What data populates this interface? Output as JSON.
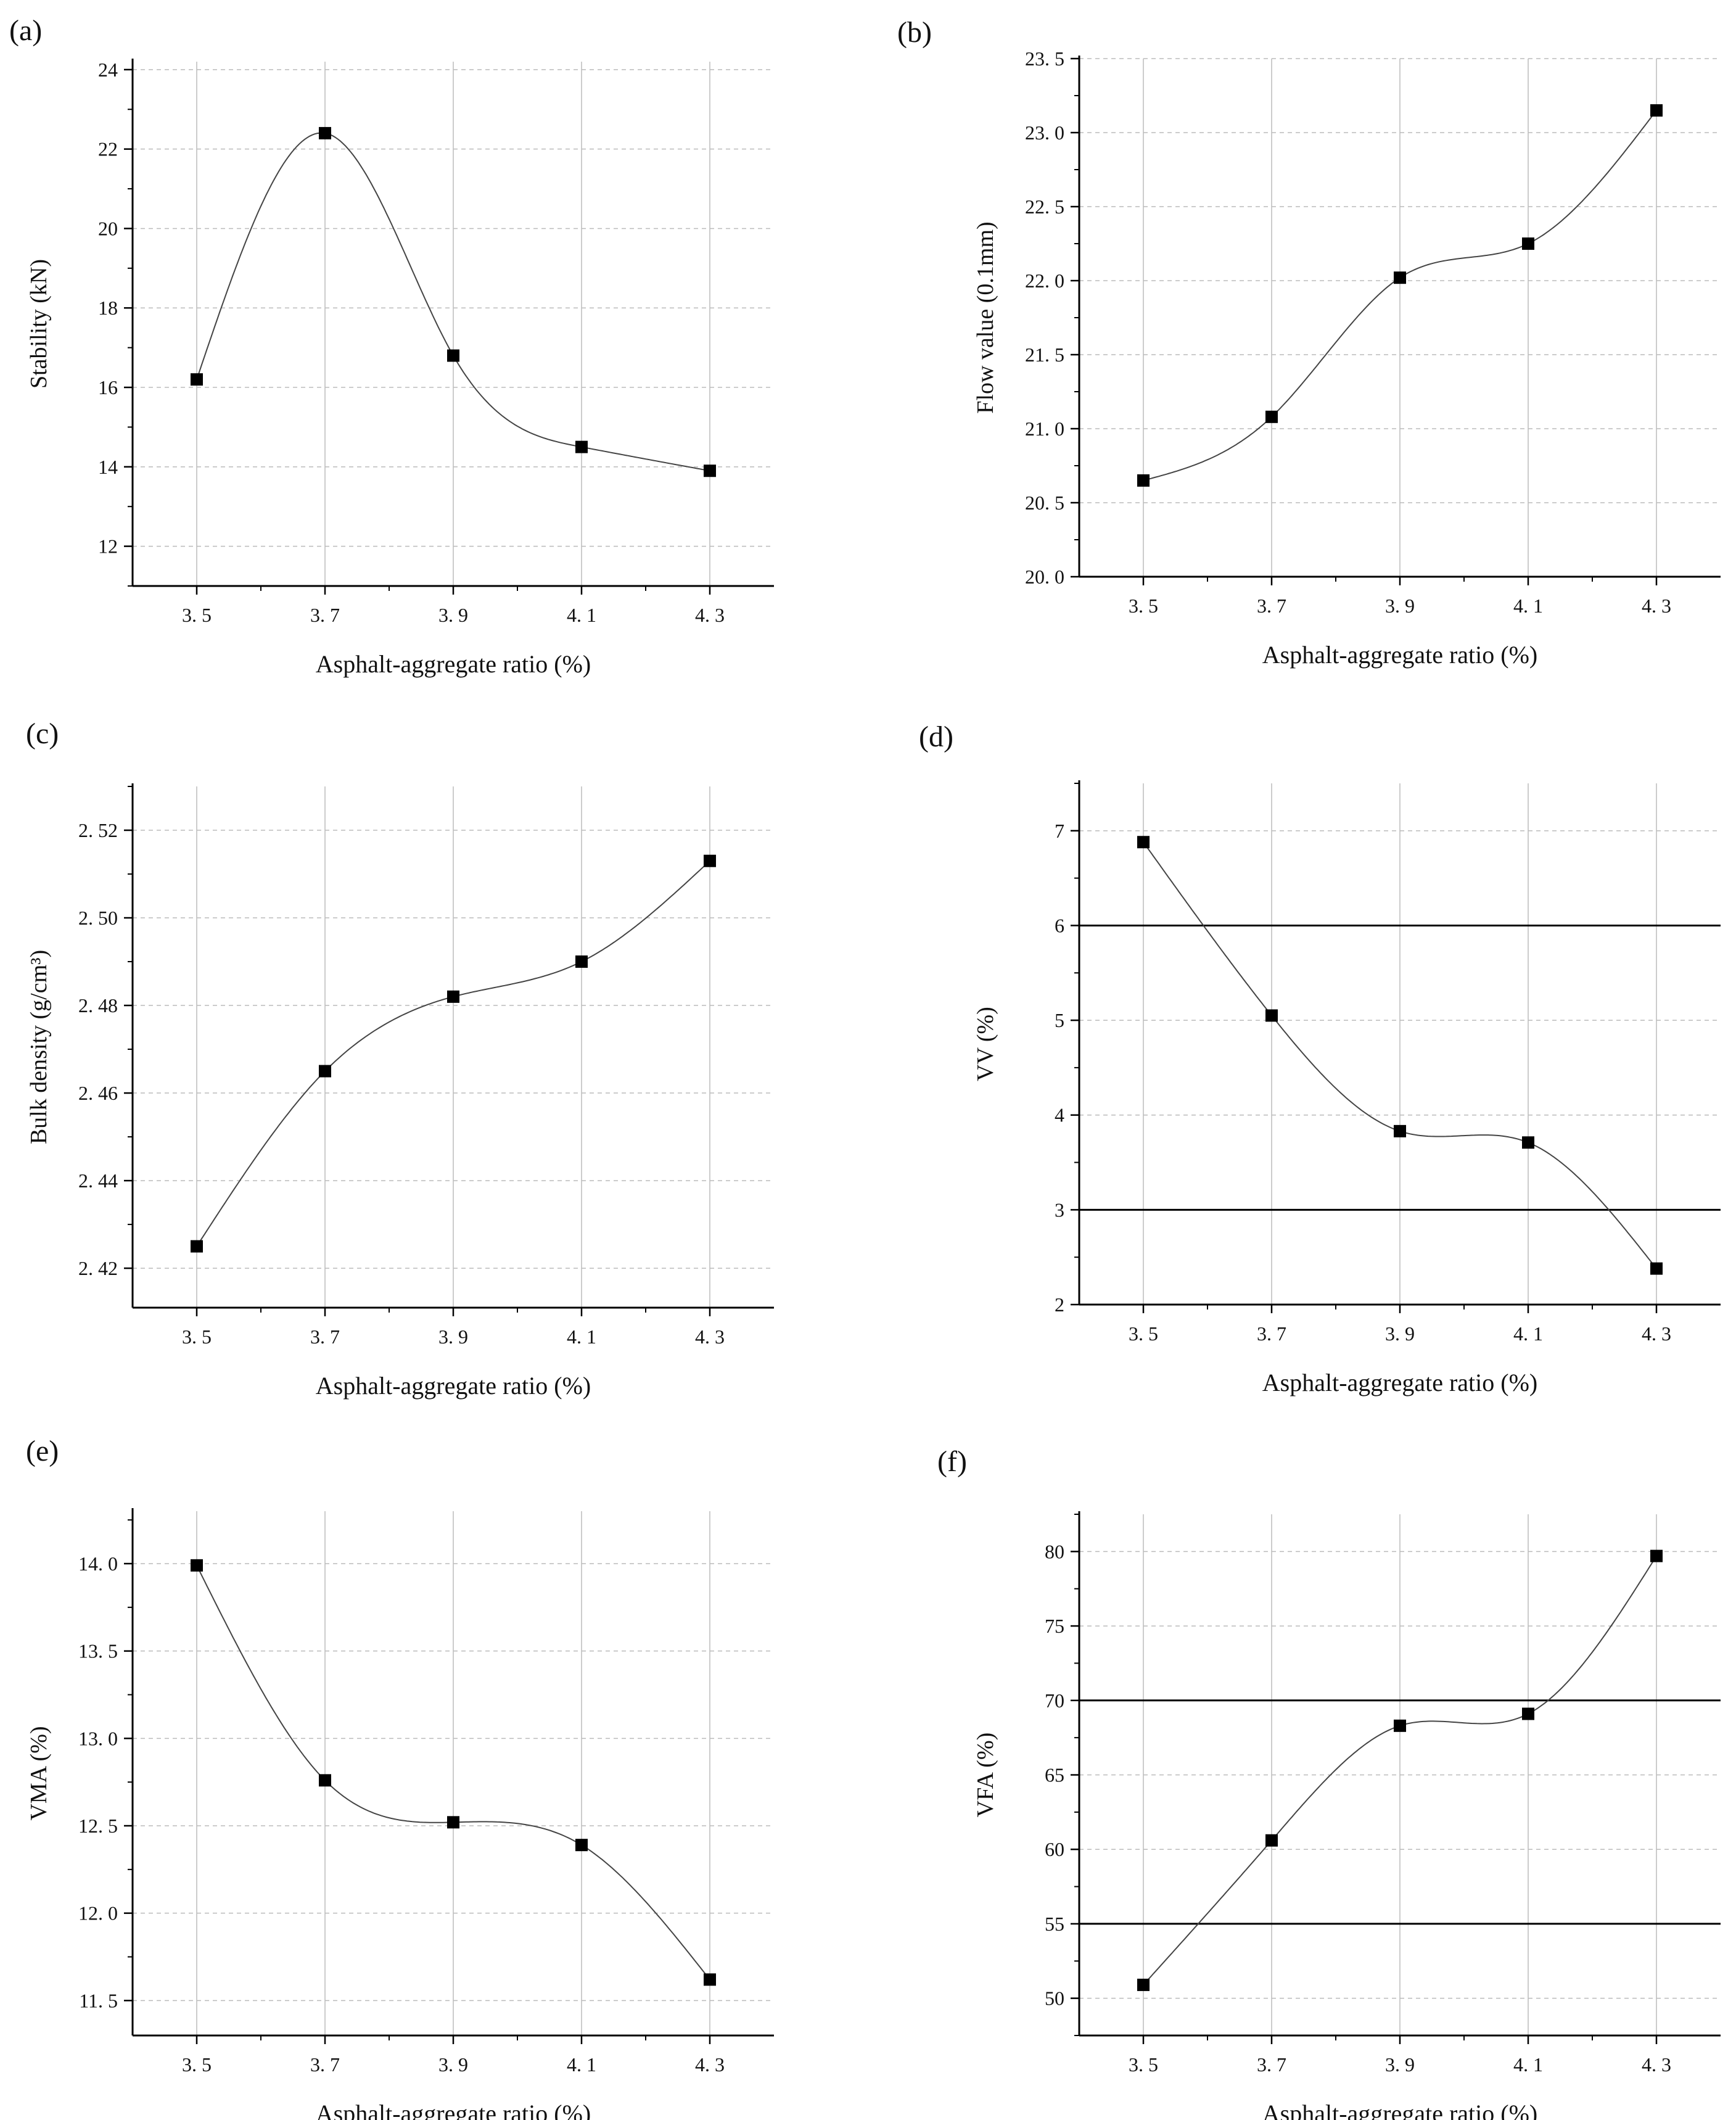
{
  "chart_data": [
    {
      "panel": "(a)",
      "type": "line",
      "x": [
        3.5,
        3.7,
        3.9,
        4.1,
        4.3
      ],
      "x_tick_labels": [
        "3. 5",
        "3. 7",
        "3. 9",
        "4. 1",
        "4. 3"
      ],
      "values": [
        16.2,
        22.4,
        16.8,
        14.5,
        13.9
      ],
      "xlabel": "Asphalt-aggregate ratio (%)",
      "ylabel": "Stability (kN)",
      "xlim": [
        3.4,
        4.4
      ],
      "ylim": [
        11,
        24.2
      ],
      "y_ticks": [
        12,
        14,
        16,
        18,
        20,
        22,
        24
      ],
      "y_tick_labels": [
        "12",
        "14",
        "16",
        "18",
        "20",
        "22",
        "24"
      ],
      "limit_lines": [],
      "grid": true
    },
    {
      "panel": "(b)",
      "type": "line",
      "x": [
        3.5,
        3.7,
        3.9,
        4.1,
        4.3
      ],
      "x_tick_labels": [
        "3. 5",
        "3. 7",
        "3. 9",
        "4. 1",
        "4. 3"
      ],
      "values": [
        20.65,
        21.08,
        22.02,
        22.25,
        23.15
      ],
      "xlabel": "Asphalt-aggregate ratio (%)",
      "ylabel": "Flow value (0.1mm)",
      "xlim": [
        3.4,
        4.4
      ],
      "ylim": [
        20.0,
        23.5
      ],
      "y_ticks": [
        20.0,
        20.5,
        21.0,
        21.5,
        22.0,
        22.5,
        23.0,
        23.5
      ],
      "y_tick_labels": [
        "20. 0",
        "20. 5",
        "21. 0",
        "21. 5",
        "22. 0",
        "22. 5",
        "23. 0",
        "23. 5"
      ],
      "limit_lines": [],
      "grid": true
    },
    {
      "panel": "(c)",
      "type": "line",
      "x": [
        3.5,
        3.7,
        3.9,
        4.1,
        4.3
      ],
      "x_tick_labels": [
        "3. 5",
        "3. 7",
        "3. 9",
        "4. 1",
        "4. 3"
      ],
      "values": [
        2.425,
        2.465,
        2.482,
        2.49,
        2.513
      ],
      "xlabel": "Asphalt-aggregate ratio (%)",
      "ylabel": "Bulk density (g/cm³)",
      "xlim": [
        3.4,
        4.4
      ],
      "ylim": [
        2.411,
        2.53
      ],
      "y_ticks": [
        2.42,
        2.44,
        2.46,
        2.48,
        2.5,
        2.52
      ],
      "y_tick_labels": [
        "2. 42",
        "2. 44",
        "2. 46",
        "2. 48",
        "2. 50",
        "2. 52"
      ],
      "limit_lines": [],
      "grid": true
    },
    {
      "panel": "(d)",
      "type": "line",
      "x": [
        3.5,
        3.7,
        3.9,
        4.1,
        4.3
      ],
      "x_tick_labels": [
        "3. 5",
        "3. 7",
        "3. 9",
        "4. 1",
        "4. 3"
      ],
      "values": [
        6.88,
        5.05,
        3.83,
        3.71,
        2.38
      ],
      "xlabel": "Asphalt-aggregate ratio (%)",
      "ylabel": "VV (%)",
      "xlim": [
        3.4,
        4.4
      ],
      "ylim": [
        2,
        7.5
      ],
      "y_ticks": [
        2,
        3,
        4,
        5,
        6,
        7
      ],
      "y_tick_labels": [
        "2",
        "3",
        "4",
        "5",
        "6",
        "7"
      ],
      "limit_lines": [
        3,
        6
      ],
      "grid": true
    },
    {
      "panel": "(e)",
      "type": "line",
      "x": [
        3.5,
        3.7,
        3.9,
        4.1,
        4.3
      ],
      "x_tick_labels": [
        "3. 5",
        "3. 7",
        "3. 9",
        "4. 1",
        "4. 3"
      ],
      "values": [
        13.99,
        12.76,
        12.52,
        12.39,
        11.62
      ],
      "xlabel": "Asphalt-aggregate ratio (%)",
      "ylabel": "VMA (%)",
      "xlim": [
        3.4,
        4.4
      ],
      "ylim": [
        11.3,
        14.3
      ],
      "y_ticks": [
        11.5,
        12.0,
        12.5,
        13.0,
        13.5,
        14.0
      ],
      "y_tick_labels": [
        "11. 5",
        "12. 0",
        "12. 5",
        "13. 0",
        "13. 5",
        "14. 0"
      ],
      "limit_lines": [],
      "grid": true
    },
    {
      "panel": "(f)",
      "type": "line",
      "x": [
        3.5,
        3.7,
        3.9,
        4.1,
        4.3
      ],
      "x_tick_labels": [
        "3. 5",
        "3. 7",
        "3. 9",
        "4. 1",
        "4. 3"
      ],
      "values": [
        50.9,
        60.6,
        68.3,
        69.1,
        79.7
      ],
      "xlabel": "Asphalt-aggregate ratio (%)",
      "ylabel": "VFA (%)",
      "xlim": [
        3.4,
        4.4
      ],
      "ylim": [
        47.5,
        82.5
      ],
      "y_ticks": [
        50,
        55,
        60,
        65,
        70,
        75,
        80
      ],
      "y_tick_labels": [
        "50",
        "55",
        "60",
        "65",
        "70",
        "75",
        "80"
      ],
      "limit_lines": [
        55,
        70
      ],
      "grid": true
    }
  ],
  "colors": {
    "line": "#444444",
    "marker": "#000000",
    "grid_vertical": "#cccccc",
    "grid_horizontal": "#bbbbbb",
    "axis": "#000000",
    "limit_line": "#000000"
  }
}
